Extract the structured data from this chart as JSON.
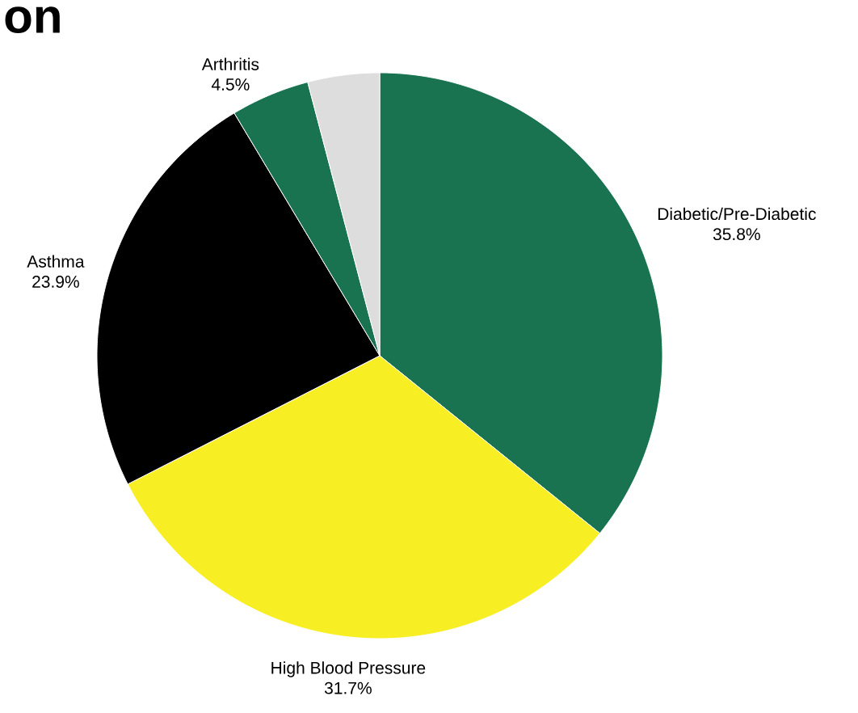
{
  "chart_data": {
    "type": "pie",
    "title": "on",
    "categories": [
      "Diabetic/Pre-Diabetic",
      "High Blood Pressure",
      "Asthma",
      "Arthritis",
      null
    ],
    "values": [
      35.8,
      31.7,
      23.9,
      4.5,
      4.1
    ],
    "value_labels": [
      "35.8%",
      "31.7%",
      "23.9%",
      "4.5%",
      null
    ],
    "colors": [
      "#1a7350",
      "#f8ee24",
      "#000000",
      "#1a7350",
      "#dddddd"
    ],
    "legend": false
  }
}
